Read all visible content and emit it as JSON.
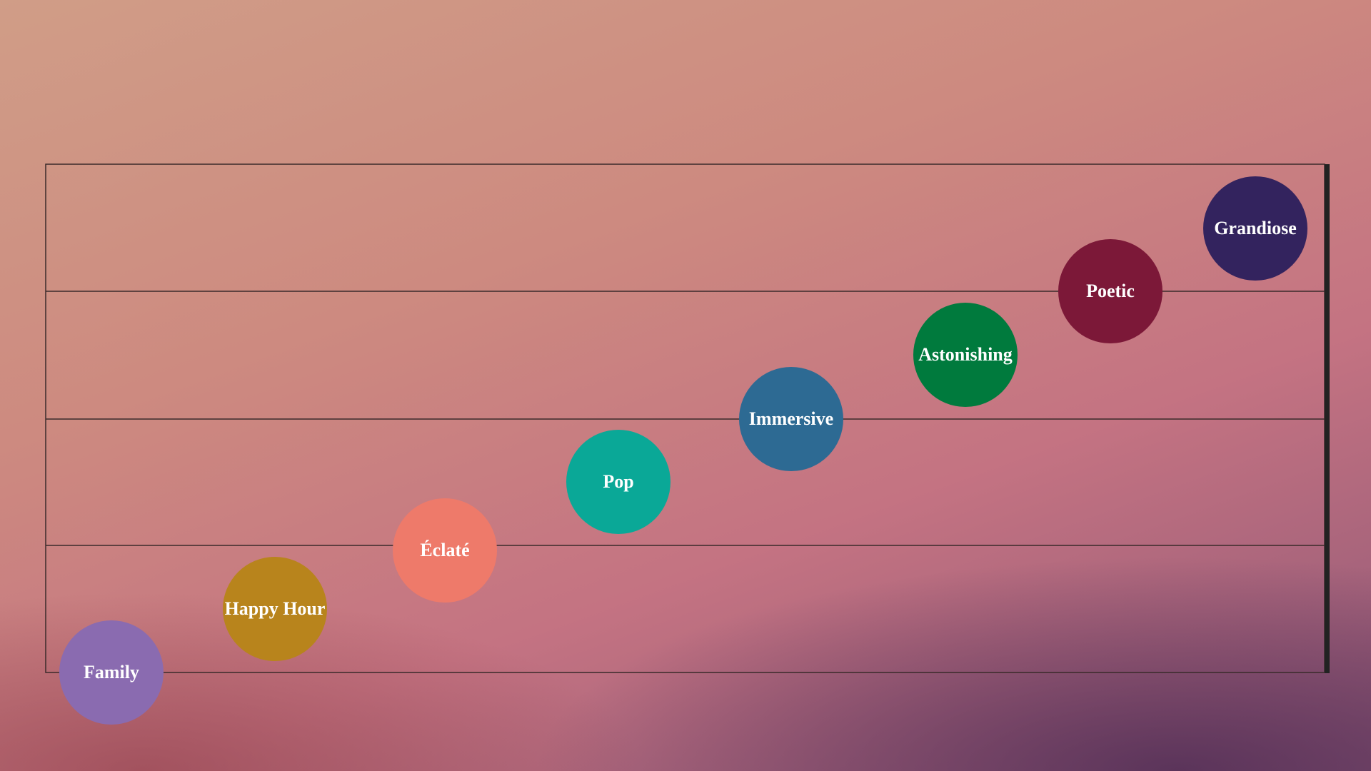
{
  "items": [
    {
      "label": "Family",
      "color": "#8a6bb0"
    },
    {
      "label": "Happy Hour",
      "color": "#b8841c"
    },
    {
      "label": "Éclaté",
      "color": "#ee7a6a"
    },
    {
      "label": "Pop",
      "color": "#0aa897"
    },
    {
      "label": "Immersive",
      "color": "#2d6a93"
    },
    {
      "label": "Astonishing",
      "color": "#007a3d"
    },
    {
      "label": "Poetic",
      "color": "#7c1838"
    },
    {
      "label": "Grandiose",
      "color": "#33235e"
    }
  ]
}
